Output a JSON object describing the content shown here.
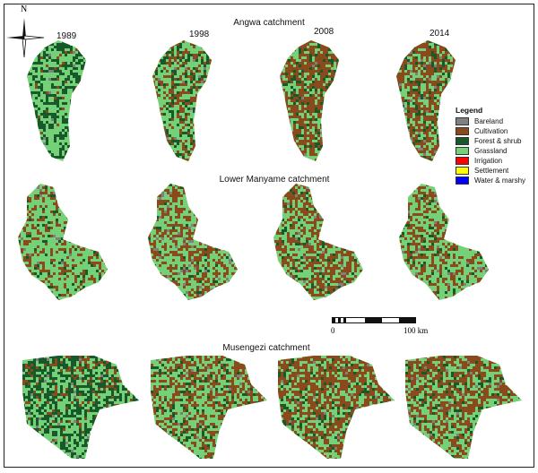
{
  "north_label": "N",
  "years": [
    "1989",
    "1998",
    "2008",
    "2014"
  ],
  "catchments": [
    {
      "title": "Angwa catchment"
    },
    {
      "title": "Lower Manyame catchment"
    },
    {
      "title": "Musengezi catchment"
    }
  ],
  "legend": {
    "title": "Legend",
    "items": [
      {
        "label": "Bareland",
        "color": "#808080"
      },
      {
        "label": "Cultivation",
        "color": "#8b4a1c"
      },
      {
        "label": "Forest & shrub",
        "color": "#17592b"
      },
      {
        "label": "Grassland",
        "color": "#74d177"
      },
      {
        "label": "Irrigation",
        "color": "#ff0000"
      },
      {
        "label": "Settlement",
        "color": "#ffff00"
      },
      {
        "label": "Water & marshy",
        "color": "#0000ff"
      }
    ]
  },
  "scale_bar": {
    "start": "0",
    "end": "100 km"
  }
}
